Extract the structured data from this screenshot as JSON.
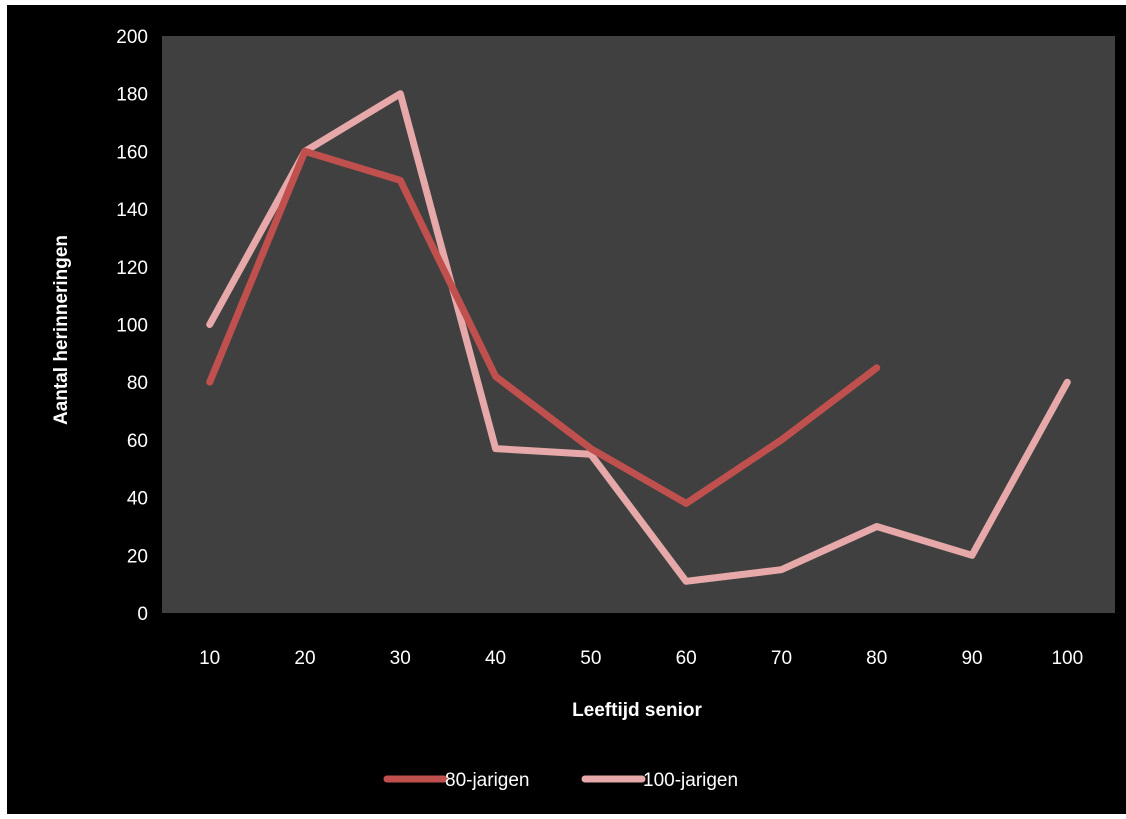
{
  "chart_data": {
    "type": "line",
    "title": "",
    "xlabel": "Leeftijd senior",
    "ylabel": "Aantal herinneringen",
    "categories": [
      "10",
      "20",
      "30",
      "40",
      "50",
      "60",
      "70",
      "80",
      "90",
      "100"
    ],
    "ylim": [
      0,
      200
    ],
    "yticks": [
      0,
      20,
      40,
      60,
      80,
      100,
      120,
      140,
      160,
      180,
      200
    ],
    "grid": false,
    "legend_position": "bottom",
    "plot_background": "#404040",
    "background": "#000000",
    "series": [
      {
        "name": "80-jarigen",
        "color": "#c0504d",
        "values": [
          80,
          160,
          150,
          82,
          57,
          38,
          60,
          85,
          null,
          null
        ]
      },
      {
        "name": "100-jarigen",
        "color": "#e6a8a8",
        "values": [
          100,
          160,
          180,
          57,
          55,
          11,
          15,
          30,
          20,
          80
        ]
      }
    ]
  }
}
